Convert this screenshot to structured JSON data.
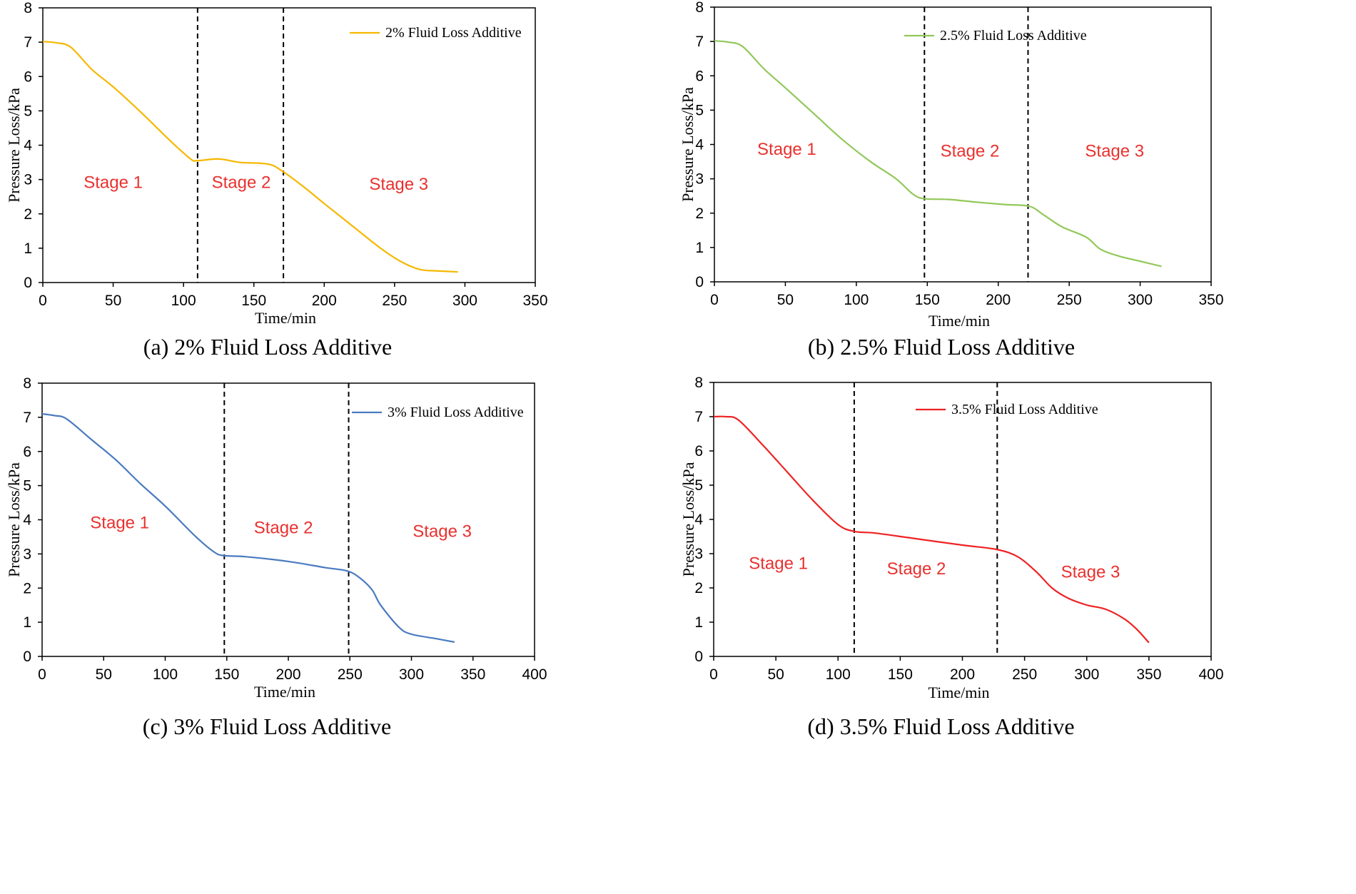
{
  "stage_color": "#e8312f",
  "chart_data": [
    {
      "id": "a",
      "type": "line",
      "caption": "(a) 2% Fluid Loss Additive",
      "xlabel": "Time/min",
      "ylabel": "Pressure Loss/kPa",
      "xlim": [
        0,
        350
      ],
      "ylim": [
        0,
        8
      ],
      "xticks": [
        "0",
        "50",
        "100",
        "150",
        "200",
        "250",
        "300",
        "350"
      ],
      "yticks": [
        "0",
        "1",
        "2",
        "3",
        "4",
        "5",
        "6",
        "7",
        "8"
      ],
      "series": [
        {
          "name": "2% Fluid Loss Additive",
          "color": "#f5b800",
          "x": [
            0,
            10,
            20,
            35,
            50,
            70,
            90,
            105,
            110,
            125,
            140,
            160,
            170,
            185,
            200,
            220,
            240,
            255,
            268,
            280,
            295
          ],
          "y": [
            7.02,
            6.98,
            6.85,
            6.2,
            5.7,
            4.95,
            4.15,
            3.6,
            3.55,
            3.6,
            3.5,
            3.45,
            3.25,
            2.8,
            2.3,
            1.65,
            1.0,
            0.6,
            0.38,
            0.34,
            0.31
          ]
        }
      ],
      "vlines": [
        110,
        171
      ],
      "stages": [
        {
          "label": "Stage 1",
          "x": 50,
          "y": 2.75
        },
        {
          "label": "Stage 2",
          "x": 141,
          "y": 2.75
        },
        {
          "label": "Stage 3",
          "x": 253,
          "y": 2.7
        }
      ],
      "legend": "top-right"
    },
    {
      "id": "b",
      "type": "line",
      "caption": "(b) 2.5% Fluid Loss Additive",
      "xlabel": "Time/min",
      "ylabel": "Pressure Loss/kPa",
      "xlim": [
        0,
        350
      ],
      "ylim": [
        0,
        8
      ],
      "xticks": [
        "0",
        "50",
        "100",
        "150",
        "200",
        "250",
        "300",
        "350"
      ],
      "yticks": [
        "0",
        "1",
        "2",
        "3",
        "4",
        "5",
        "6",
        "7",
        "8"
      ],
      "series": [
        {
          "name": "2.5% Fluid Loss Additive",
          "color": "#92c85a",
          "x": [
            0,
            10,
            20,
            35,
            50,
            70,
            90,
            110,
            128,
            140,
            148,
            165,
            185,
            205,
            222,
            232,
            245,
            262,
            272,
            285,
            300,
            315
          ],
          "y": [
            7.02,
            6.98,
            6.85,
            6.2,
            5.65,
            4.9,
            4.15,
            3.5,
            3.0,
            2.55,
            2.42,
            2.4,
            2.32,
            2.25,
            2.2,
            1.95,
            1.6,
            1.3,
            0.95,
            0.75,
            0.6,
            0.45
          ]
        }
      ],
      "vlines": [
        148,
        221
      ],
      "stages": [
        {
          "label": "Stage 1",
          "x": 51,
          "y": 3.7
        },
        {
          "label": "Stage 2",
          "x": 180,
          "y": 3.65
        },
        {
          "label": "Stage 3",
          "x": 282,
          "y": 3.65
        }
      ],
      "legend": "top-right"
    },
    {
      "id": "c",
      "type": "line",
      "caption": "(c) 3% Fluid Loss Additive",
      "xlabel": "Time/min",
      "ylabel": "Pressure Loss/kPa",
      "xlim": [
        0,
        400
      ],
      "ylim": [
        0,
        8
      ],
      "xticks": [
        "0",
        "50",
        "100",
        "150",
        "200",
        "250",
        "300",
        "350",
        "400"
      ],
      "yticks": [
        "0",
        "1",
        "2",
        "3",
        "4",
        "5",
        "6",
        "7",
        "8"
      ],
      "series": [
        {
          "name": "3% Fluid Loss Additive",
          "color": "#4a7bbf",
          "x": [
            0,
            10,
            20,
            40,
            60,
            80,
            100,
            125,
            140,
            148,
            165,
            200,
            230,
            248,
            258,
            268,
            275,
            290,
            300,
            320,
            335
          ],
          "y": [
            7.1,
            7.05,
            6.95,
            6.35,
            5.75,
            5.05,
            4.4,
            3.5,
            3.05,
            2.95,
            2.92,
            2.78,
            2.6,
            2.5,
            2.3,
            1.95,
            1.5,
            0.85,
            0.65,
            0.52,
            0.42
          ]
        }
      ],
      "vlines": [
        148,
        249
      ],
      "stages": [
        {
          "label": "Stage 1",
          "x": 63,
          "y": 3.75
        },
        {
          "label": "Stage 2",
          "x": 196,
          "y": 3.6
        },
        {
          "label": "Stage 3",
          "x": 325,
          "y": 3.5
        }
      ],
      "legend": "top-right"
    },
    {
      "id": "d",
      "type": "line",
      "caption": "(d) 3.5% Fluid Loss Additive",
      "xlabel": "Time/min",
      "ylabel": "Pressure Loss/kPa",
      "xlim": [
        0,
        400
      ],
      "ylim": [
        0,
        8
      ],
      "xticks": [
        "0",
        "50",
        "100",
        "150",
        "200",
        "250",
        "300",
        "350",
        "400"
      ],
      "yticks": [
        "0",
        "1",
        "2",
        "3",
        "4",
        "5",
        "6",
        "7",
        "8"
      ],
      "series": [
        {
          "name": "3.5% Fluid Loss Additive",
          "color": "#ee2323",
          "x": [
            0,
            10,
            20,
            40,
            60,
            80,
            100,
            113,
            130,
            160,
            200,
            228,
            245,
            260,
            272,
            285,
            300,
            315,
            330,
            340,
            350
          ],
          "y": [
            7.0,
            7.0,
            6.9,
            6.15,
            5.35,
            4.55,
            3.85,
            3.65,
            3.6,
            3.45,
            3.25,
            3.12,
            2.9,
            2.45,
            2.0,
            1.7,
            1.5,
            1.38,
            1.1,
            0.8,
            0.4
          ]
        }
      ],
      "vlines": [
        113,
        228
      ],
      "stages": [
        {
          "label": "Stage 1",
          "x": 52,
          "y": 2.55
        },
        {
          "label": "Stage 2",
          "x": 163,
          "y": 2.4
        },
        {
          "label": "Stage 3",
          "x": 303,
          "y": 2.3
        }
      ],
      "legend": "top-right"
    }
  ]
}
